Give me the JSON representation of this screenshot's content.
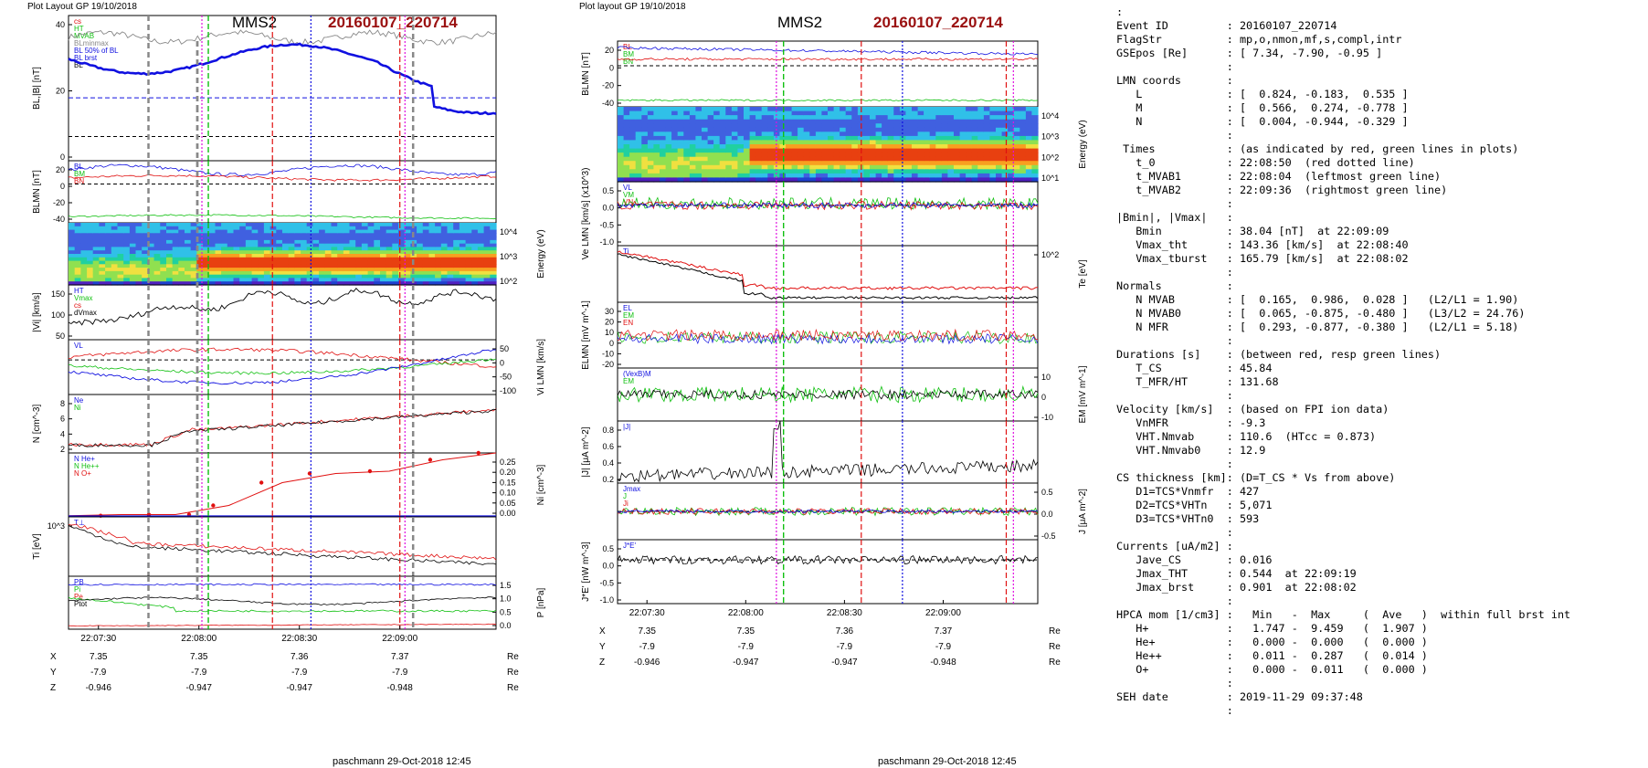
{
  "left": {
    "header": "Plot Layout GP 19/10/2018",
    "spacecraft": "MMS2",
    "event": "20160107_220714",
    "footer": "paschmann 29-Oct-2018 12:45",
    "xticks": [
      "22:07:30",
      "22:08:00",
      "22:08:30",
      "22:09:00"
    ],
    "coords": {
      "names": [
        "X",
        "Y",
        "Z"
      ],
      "unit": "Re",
      "values": [
        [
          "7.35",
          "7.35",
          "7.36",
          "7.37"
        ],
        [
          "-7.9",
          "-7.9",
          "-7.9",
          "-7.9"
        ],
        [
          "-0.946",
          "-0.947",
          "-0.947",
          "-0.948"
        ]
      ]
    },
    "panels": [
      {
        "ylabel": "BL,|B| [nT]",
        "ticks_left": [
          "40",
          "20",
          "0"
        ],
        "ticks_right": [],
        "legend": [
          "cs",
          "HT",
          "MVAB",
          "BLminmax",
          "BL 50% of BL",
          "BL brst",
          "BL"
        ]
      },
      {
        "ylabel": "BLMN [nT]",
        "ticks_left": [
          "20",
          "0",
          "-20",
          "-40"
        ],
        "ticks_right": [],
        "legend": [
          "BL",
          "BM",
          "BN"
        ]
      },
      {
        "ylabel": "Energy (eV)",
        "ticks_left": [],
        "ticks_right": [
          "10^4",
          "10^3",
          "10^2"
        ],
        "legend": []
      },
      {
        "ylabel": "|Vi| [km/s]",
        "ticks_left": [
          "150",
          "100",
          "50"
        ],
        "ticks_right": [],
        "legend": [
          "HT",
          "Vmax",
          "cs",
          "dVmax"
        ]
      },
      {
        "ylabel": "Vi LMN [km/s]",
        "ticks_left": [],
        "ticks_right": [
          "50",
          "0",
          "-50",
          "-100"
        ],
        "legend": [
          "VL"
        ]
      },
      {
        "ylabel": "N [cm^-3]",
        "ticks_left": [
          "8",
          "6",
          "4",
          "2"
        ],
        "ticks_right": [],
        "legend": [
          "Ne",
          "Ni"
        ]
      },
      {
        "ylabel": "Ni [cm^-3]",
        "ticks_left": [],
        "ticks_right": [
          "0.25",
          "0.20",
          "0.15",
          "0.10",
          "0.05",
          "0.00"
        ],
        "legend": [
          "N He+",
          "N He++",
          "N O+"
        ]
      },
      {
        "ylabel": "Ti [eV]",
        "ticks_left": [
          "10^3"
        ],
        "ticks_right": [],
        "legend": [
          "T⊥"
        ]
      },
      {
        "ylabel": "P [nPa]",
        "ticks_left": [],
        "ticks_right": [
          "1.5",
          "1.0",
          "0.5",
          "0.0"
        ],
        "legend": [
          "PB",
          "Pi",
          "Pe",
          "Ptot"
        ]
      }
    ]
  },
  "right": {
    "header": "Plot layout GP 19/10/2018",
    "spacecraft": "MMS2",
    "event": "20160107_220714",
    "footer": "paschmann 29-Oct-2018 12:45",
    "xticks": [
      "22:07:30",
      "22:08:00",
      "22:08:30",
      "22:09:00"
    ],
    "coords": {
      "names": [
        "X",
        "Y",
        "Z"
      ],
      "unit": "Re",
      "values": [
        [
          "7.35",
          "7.35",
          "7.36",
          "7.37"
        ],
        [
          "-7.9",
          "-7.9",
          "-7.9",
          "-7.9"
        ],
        [
          "-0.946",
          "-0.947",
          "-0.947",
          "-0.948"
        ]
      ]
    },
    "panels": [
      {
        "ylabel": "BLMN [nT]",
        "ticks_left": [
          "20",
          "0",
          "-20",
          "-40"
        ],
        "ticks_right": [],
        "legend": [
          "BL",
          "BM",
          "BN"
        ]
      },
      {
        "ylabel": "Energy (eV)",
        "ticks_left": [],
        "ticks_right": [
          "10^4",
          "10^3",
          "10^2",
          "10^1"
        ],
        "legend": []
      },
      {
        "ylabel": "Ve LMN [km/s] (x10^3)",
        "ticks_left": [
          "0.5",
          "0.0",
          "-0.5",
          "-1.0"
        ],
        "ticks_right": [],
        "legend": [
          "VL",
          "VM",
          "VN"
        ]
      },
      {
        "ylabel": "Te [eV]",
        "ticks_left": [],
        "ticks_right": [
          "10^2"
        ],
        "legend": [
          "Ti"
        ]
      },
      {
        "ylabel": "ELMN [mV m^-1]",
        "ticks_left": [
          "30",
          "20",
          "10",
          "0",
          "-10",
          "-20"
        ],
        "ticks_right": [],
        "legend": [
          "EL",
          "EM",
          "EN"
        ]
      },
      {
        "ylabel": "EM [mV m^-1]",
        "ticks_left": [],
        "ticks_right": [
          "10",
          "0",
          "-10"
        ],
        "legend": [
          "(VexB)M",
          "EM"
        ]
      },
      {
        "ylabel": "|J| [μA m^-2]",
        "ticks_left": [
          "0.8",
          "0.6",
          "0.4",
          "0.2"
        ],
        "ticks_right": [],
        "legend": [
          "|J|"
        ]
      },
      {
        "ylabel": "J [μA m^-2]",
        "ticks_left": [],
        "ticks_right": [
          "0.5",
          "0.0",
          "-0.5"
        ],
        "legend": [
          "Jmax",
          "J",
          "Ji"
        ]
      },
      {
        "ylabel": "J*E' [nW m^-3]",
        "ticks_left": [
          "0.5",
          "0.0",
          "-0.5",
          "-1.0"
        ],
        "ticks_right": [],
        "legend": [
          "J*E'"
        ]
      }
    ]
  },
  "info_lines": [
    ":",
    "Event ID         : 20160107_220714",
    "FlagStr          : mp,o,nmon,mf,s,compl,intr",
    "GSEpos [Re]      : [ 7.34, -7.90, -0.95 ]",
    "                 :",
    "LMN coords       :",
    "   L             : [  0.824, -0.183,  0.535 ]",
    "   M             : [  0.566,  0.274, -0.778 ]",
    "   N             : [  0.004, -0.944, -0.329 ]",
    "                 :",
    " Times           : (as indicated by red, green lines in plots)",
    "   t_0           : 22:08:50  (red dotted line)",
    "   t_MVAB1       : 22:08:04  (leftmost green line)",
    "   t_MVAB2       : 22:09:36  (rightmost green line)",
    "                 :",
    "|Bmin|, |Vmax|   :",
    "   Bmin          : 38.04 [nT]  at 22:09:09",
    "   Vmax_tht      : 143.36 [km/s]  at 22:08:40",
    "   Vmax_tburst   : 165.79 [km/s]  at 22:08:02",
    "                 :",
    "Normals          :",
    "   N MVAB        : [  0.165,  0.986,  0.028 ]   (L2/L1 = 1.90)",
    "   N MVAB0       : [  0.065, -0.875, -0.480 ]   (L3/L2 = 24.76)",
    "   N MFR         : [  0.293, -0.877, -0.380 ]   (L2/L1 = 5.18)",
    "                 :",
    "Durations [s]    : (between red, resp green lines)",
    "   T_CS          : 45.84",
    "   T_MFR/HT      : 131.68",
    "                 :",
    "Velocity [km/s]  : (based on FPI ion data)",
    "   VnMFR         : -9.3",
    "   VHT.Nmvab     : 110.6  (HTcc = 0.873)",
    "   VHT.Nmvab0    : 12.9",
    "                 :",
    "CS thickness [km]: (D=T_CS * Vs from above)",
    "   D1=TCS*Vnmfr  : 427",
    "   D2=TCS*VHTn   : 5,071",
    "   D3=TCS*VHTn0  : 593",
    "                 :",
    "Currents [uA/m2] :",
    "   Jave_CS       : 0.016",
    "   Jmax_THT      : 0.544  at 22:09:19",
    "   Jmax_brst     : 0.901  at 22:08:02",
    "                 :",
    "HPCA mom [1/cm3] :   Min   -  Max     (  Ave   )  within full brst int",
    "   H+            :   1.747 -  9.459   (  1.907 )",
    "   He+           :   0.000 -  0.000   (  0.000 )",
    "   He++          :   0.011 -  0.287   (  0.014 )",
    "   O+            :   0.000 -  0.011   (  0.000 )",
    "                 :",
    "SEH date         : 2019-11-29 09:37:48",
    "                 :"
  ],
  "colors": {
    "title_red": "#9a1010",
    "blue": "#1010e0",
    "red": "#e01010",
    "green": "#10c010",
    "black": "#000000",
    "magenta": "#e010e0",
    "gray": "#888888"
  }
}
